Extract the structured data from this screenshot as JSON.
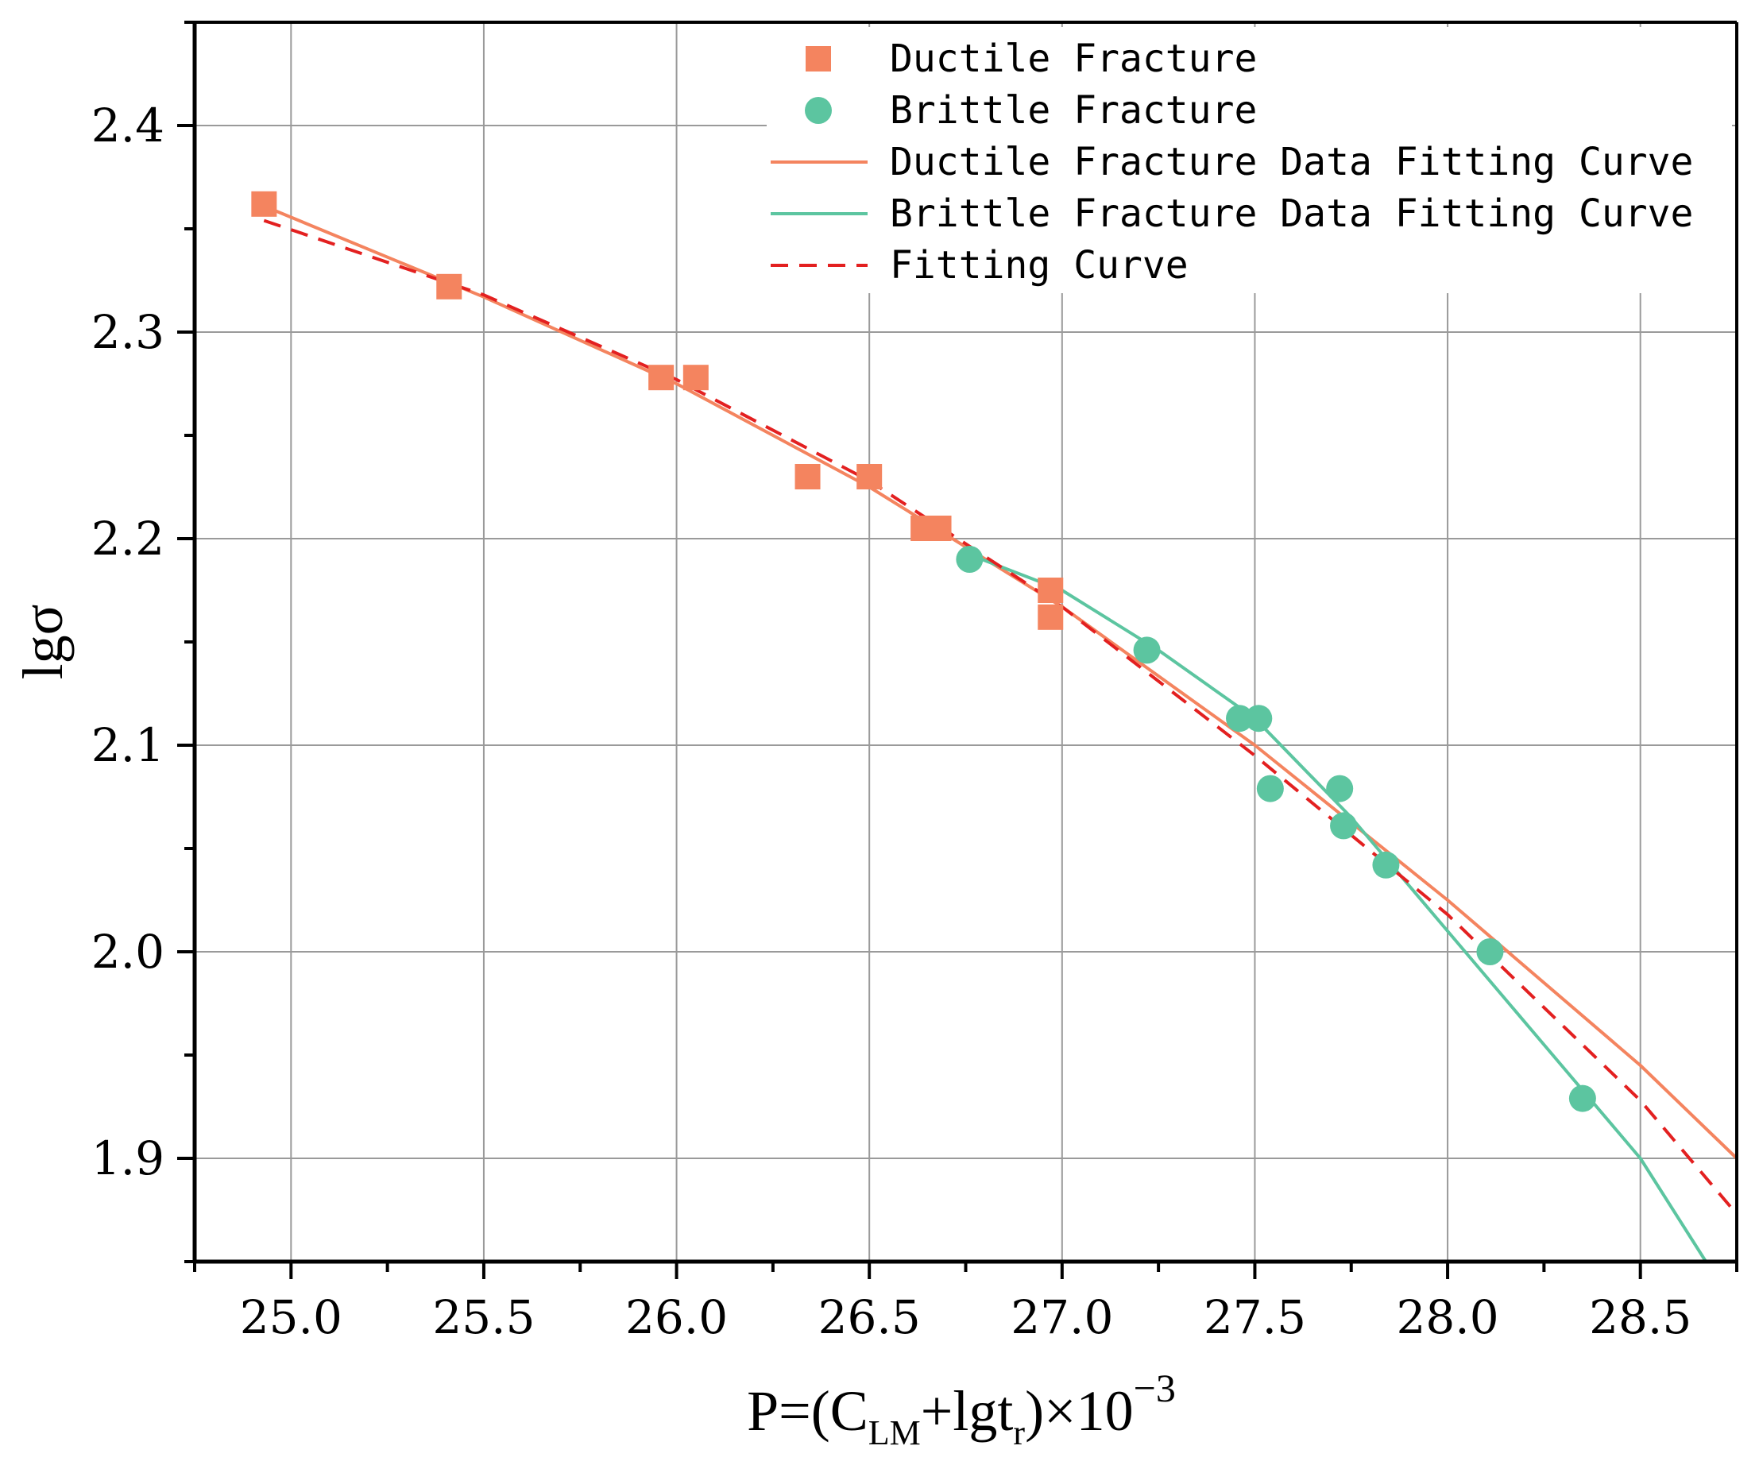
{
  "chart_data": {
    "type": "scatter",
    "title": "",
    "xlabel": {
      "main": "P=(C",
      "sub1": "LM",
      "mid": "+lgt",
      "sub2": "r",
      "tail": ")×10",
      "sup": "−3"
    },
    "ylabel": "lgσ",
    "xlim": [
      24.75,
      28.75
    ],
    "ylim": [
      1.85,
      2.45
    ],
    "xticks": [
      25.0,
      25.5,
      26.0,
      26.5,
      27.0,
      27.5,
      28.0,
      28.5
    ],
    "xtick_labels": [
      "25.0",
      "25.5",
      "26.0",
      "26.5",
      "27.0",
      "27.5",
      "28.0",
      "28.5"
    ],
    "yticks": [
      1.9,
      2.0,
      2.1,
      2.2,
      2.3,
      2.4
    ],
    "ytick_labels": [
      "1.9",
      "2.0",
      "2.1",
      "2.2",
      "2.3",
      "2.4"
    ],
    "grid": true,
    "legend_position": "top-right",
    "series": [
      {
        "name": "Ductile Fracture",
        "kind": "scatter",
        "marker": "square",
        "color": "#F4845F",
        "points": [
          [
            24.93,
            2.362
          ],
          [
            25.41,
            2.322
          ],
          [
            25.96,
            2.278
          ],
          [
            26.05,
            2.278
          ],
          [
            26.34,
            2.23
          ],
          [
            26.5,
            2.23
          ],
          [
            26.64,
            2.205
          ],
          [
            26.68,
            2.205
          ],
          [
            26.97,
            2.175
          ],
          [
            26.97,
            2.162
          ]
        ]
      },
      {
        "name": "Brittle Fracture",
        "kind": "scatter",
        "marker": "circle",
        "color": "#5CC5A0",
        "points": [
          [
            26.76,
            2.19
          ],
          [
            27.22,
            2.146
          ],
          [
            27.46,
            2.113
          ],
          [
            27.51,
            2.113
          ],
          [
            27.54,
            2.079
          ],
          [
            27.72,
            2.079
          ],
          [
            27.73,
            2.061
          ],
          [
            27.84,
            2.042
          ],
          [
            28.11,
            2.0
          ],
          [
            28.35,
            1.929
          ]
        ]
      },
      {
        "name": "Ductile Fracture Data Fitting Curve",
        "kind": "line",
        "style": "solid",
        "color": "#F4845F",
        "x": [
          24.93,
          25.5,
          26.0,
          26.5,
          27.0,
          27.5,
          28.0,
          28.5,
          28.75
        ],
        "y": [
          2.361,
          2.317,
          2.275,
          2.225,
          2.167,
          2.1,
          2.025,
          1.945,
          1.9
        ]
      },
      {
        "name": "Brittle Fracture Data Fitting Curve",
        "kind": "line",
        "style": "solid",
        "color": "#5CC5A0",
        "x": [
          26.75,
          27.0,
          27.25,
          27.5,
          27.75,
          28.0,
          28.25,
          28.5,
          28.67
        ],
        "y": [
          2.193,
          2.175,
          2.146,
          2.113,
          2.065,
          2.01,
          1.955,
          1.9,
          1.85
        ]
      },
      {
        "name": "Fitting Curve",
        "kind": "line",
        "style": "dashed",
        "color": "#E32020",
        "x": [
          24.93,
          25.5,
          26.0,
          26.5,
          27.0,
          27.5,
          28.0,
          28.5,
          28.75
        ],
        "y": [
          2.354,
          2.318,
          2.277,
          2.228,
          2.167,
          2.095,
          2.018,
          1.928,
          1.873
        ]
      }
    ]
  }
}
